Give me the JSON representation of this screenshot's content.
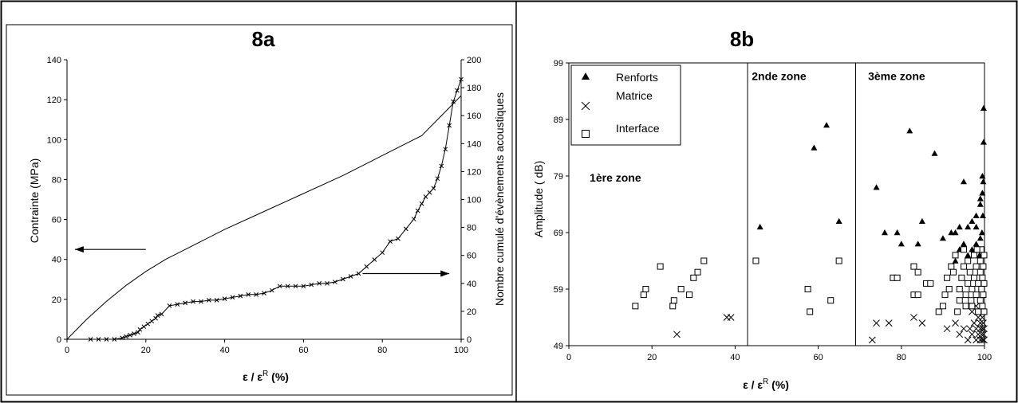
{
  "chart_data": [
    {
      "type": "line",
      "title": "8a",
      "xlabel": "ε / ε",
      "xlabel_sup": "R",
      "xlabel_unit": " (%)",
      "ylabel": "Contrainte (MPa)",
      "y2label": "Nombre cumulé d'évènements acoustiques",
      "xlim": [
        0,
        100
      ],
      "ylim": [
        0,
        140
      ],
      "y2lim": [
        0,
        200
      ],
      "x_ticks": [
        "0",
        "20",
        "40",
        "60",
        "80",
        "100"
      ],
      "y_ticks": [
        "0",
        "20",
        "40",
        "60",
        "80",
        "100",
        "120",
        "140"
      ],
      "y2_ticks": [
        "0",
        "20",
        "40",
        "60",
        "80",
        "100",
        "120",
        "140",
        "160",
        "180",
        "200"
      ],
      "grid": false,
      "series": [
        {
          "axis": "left",
          "marker": "none",
          "points": [
            [
              0,
              0
            ],
            [
              5,
              10
            ],
            [
              10,
              19
            ],
            [
              15,
              27
            ],
            [
              20,
              34
            ],
            [
              25,
              40
            ],
            [
              30,
              45
            ],
            [
              40,
              55
            ],
            [
              50,
              64
            ],
            [
              60,
              73
            ],
            [
              70,
              82
            ],
            [
              80,
              92
            ],
            [
              90,
              102
            ],
            [
              100,
              122
            ]
          ]
        },
        {
          "axis": "right",
          "marker": "cross",
          "points": [
            [
              6,
              0
            ],
            [
              8,
              0
            ],
            [
              10,
              0
            ],
            [
              12,
              0
            ],
            [
              14,
              1
            ],
            [
              15,
              2
            ],
            [
              16,
              3
            ],
            [
              17,
              4
            ],
            [
              18,
              5
            ],
            [
              18.5,
              7
            ],
            [
              19.5,
              9
            ],
            [
              20.5,
              11
            ],
            [
              21.5,
              13
            ],
            [
              22.5,
              15
            ],
            [
              23,
              17
            ],
            [
              24,
              18
            ],
            [
              26,
              24
            ],
            [
              28,
              25
            ],
            [
              30,
              26
            ],
            [
              32,
              27
            ],
            [
              34,
              27
            ],
            [
              36,
              28
            ],
            [
              38,
              28
            ],
            [
              40,
              29
            ],
            [
              42,
              30
            ],
            [
              44,
              31
            ],
            [
              46,
              32
            ],
            [
              48,
              32
            ],
            [
              50,
              33
            ],
            [
              52,
              35
            ],
            [
              54,
              38
            ],
            [
              56,
              38
            ],
            [
              58,
              38
            ],
            [
              60,
              38
            ],
            [
              62,
              39
            ],
            [
              64,
              40
            ],
            [
              66,
              40
            ],
            [
              68,
              41
            ],
            [
              70,
              43
            ],
            [
              72,
              45
            ],
            [
              74,
              47
            ],
            [
              76,
              52
            ],
            [
              78,
              57
            ],
            [
              80,
              62
            ],
            [
              82,
              70
            ],
            [
              84,
              72
            ],
            [
              86,
              79
            ],
            [
              88,
              86
            ],
            [
              89,
              92
            ],
            [
              90,
              97
            ],
            [
              91,
              102
            ],
            [
              92,
              105
            ],
            [
              93,
              108
            ],
            [
              94,
              115
            ],
            [
              95,
              124
            ],
            [
              96,
              136
            ],
            [
              97,
              153
            ],
            [
              98,
              170
            ],
            [
              99,
              178
            ],
            [
              100,
              186
            ]
          ]
        }
      ],
      "annotations": [
        {
          "type": "arrow",
          "direction": "left",
          "from": [
            20,
            45
          ],
          "to": [
            2,
            45
          ]
        },
        {
          "type": "arrow",
          "direction": "right",
          "from": [
            75,
            47
          ],
          "to": [
            97,
            47
          ]
        }
      ]
    },
    {
      "type": "scatter",
      "title": "8b",
      "xlabel": "ε / ε",
      "xlabel_sup": "R",
      "xlabel_unit": " (%)",
      "ylabel": "Amplitude ( dB)",
      "xlim": [
        0,
        100
      ],
      "ylim": [
        49,
        99
      ],
      "x_ticks": [
        "0",
        "20",
        "40",
        "60",
        "80",
        "100"
      ],
      "y_ticks": [
        "49",
        "59",
        "69",
        "79",
        "89",
        "99"
      ],
      "grid": false,
      "legend_position": "top-left",
      "zones": [
        {
          "label": "1ère zone",
          "x_label": 5,
          "y_label": 78
        },
        {
          "label": "2nde zone",
          "x_start": 43,
          "x_label": 44,
          "y_label": 96
        },
        {
          "label": "3ème zone",
          "x_start": 69,
          "x_label": 72,
          "y_label": 96
        }
      ],
      "series": [
        {
          "name": "Renforts",
          "marker": "triangle",
          "points": [
            [
              46,
              70
            ],
            [
              59,
              84
            ],
            [
              62,
              88
            ],
            [
              65,
              71
            ],
            [
              74,
              77
            ],
            [
              76,
              69
            ],
            [
              79,
              69
            ],
            [
              80,
              67
            ],
            [
              82,
              87
            ],
            [
              84,
              67
            ],
            [
              85,
              71
            ],
            [
              88,
              83
            ],
            [
              90,
              68
            ],
            [
              92,
              69
            ],
            [
              93,
              69
            ],
            [
              94,
              70
            ],
            [
              95,
              78
            ],
            [
              96,
              70
            ],
            [
              97,
              71
            ],
            [
              98,
              70
            ],
            [
              98,
              72
            ],
            [
              99,
              74
            ],
            [
              99,
              75
            ],
            [
              99.5,
              76
            ],
            [
              99.5,
              79
            ],
            [
              99.8,
              85
            ],
            [
              99.8,
              91
            ],
            [
              99,
              68
            ],
            [
              98,
              67
            ],
            [
              97,
              66
            ],
            [
              96,
              65
            ],
            [
              95,
              67
            ],
            [
              94,
              66
            ],
            [
              93,
              64
            ],
            [
              99.7,
              78
            ],
            [
              99.6,
              72
            ],
            [
              99.4,
              69
            ],
            [
              99.2,
              66
            ],
            [
              98.8,
              65
            ]
          ]
        },
        {
          "name": "Matrice",
          "marker": "cross",
          "points": [
            [
              26,
              51
            ],
            [
              38,
              54
            ],
            [
              39,
              54
            ],
            [
              73,
              50
            ],
            [
              74,
              53
            ],
            [
              77,
              53
            ],
            [
              83,
              54
            ],
            [
              85,
              53
            ],
            [
              91,
              52
            ],
            [
              93,
              53
            ],
            [
              94,
              51
            ],
            [
              95,
              52
            ],
            [
              96,
              50
            ],
            [
              96.5,
              52
            ],
            [
              97,
              51
            ],
            [
              97.5,
              53
            ],
            [
              98,
              50
            ],
            [
              98,
              52
            ],
            [
              98.5,
              51
            ],
            [
              98.5,
              54
            ],
            [
              99,
              50
            ],
            [
              99,
              52
            ],
            [
              99,
              53
            ],
            [
              99.3,
              51
            ],
            [
              99.5,
              50
            ],
            [
              99.5,
              52
            ],
            [
              99.7,
              53
            ],
            [
              99.8,
              51
            ],
            [
              99.9,
              50
            ],
            [
              99.9,
              52
            ],
            [
              97,
              55
            ],
            [
              98,
              56
            ],
            [
              99,
              55
            ],
            [
              99.5,
              54
            ]
          ]
        },
        {
          "name": "Interface",
          "marker": "square",
          "points": [
            [
              16,
              56
            ],
            [
              18,
              58
            ],
            [
              18.5,
              59
            ],
            [
              22,
              63
            ],
            [
              25,
              56
            ],
            [
              25.3,
              57
            ],
            [
              27,
              59
            ],
            [
              29,
              58
            ],
            [
              30,
              61
            ],
            [
              31,
              62
            ],
            [
              32.5,
              64
            ],
            [
              45,
              64
            ],
            [
              57.5,
              59
            ],
            [
              58,
              55
            ],
            [
              63,
              57
            ],
            [
              65,
              64
            ],
            [
              78,
              61
            ],
            [
              79,
              61
            ],
            [
              83,
              58
            ],
            [
              84,
              58
            ],
            [
              83,
              63
            ],
            [
              84,
              62
            ],
            [
              86,
              60
            ],
            [
              87,
              60
            ],
            [
              89,
              55
            ],
            [
              90,
              56
            ],
            [
              90.5,
              58
            ],
            [
              91,
              61
            ],
            [
              91.5,
              59
            ],
            [
              92,
              63
            ],
            [
              93,
              65
            ],
            [
              93.5,
              55
            ],
            [
              94,
              57
            ],
            [
              94.5,
              61
            ],
            [
              95,
              63
            ],
            [
              95.5,
              58
            ],
            [
              96,
              60
            ],
            [
              96,
              64
            ],
            [
              96.5,
              62
            ],
            [
              97,
              59
            ],
            [
              97,
              56
            ],
            [
              97.5,
              61
            ],
            [
              97.5,
              65
            ],
            [
              98,
              58
            ],
            [
              98,
              63
            ],
            [
              98.5,
              60
            ],
            [
              98.5,
              55
            ],
            [
              99,
              62
            ],
            [
              99,
              57
            ],
            [
              99,
              64
            ],
            [
              99.3,
              59
            ],
            [
              99.5,
              61
            ],
            [
              99.5,
              56
            ],
            [
              99.7,
              63
            ],
            [
              99.7,
              58
            ],
            [
              99.9,
              60
            ],
            [
              99.9,
              55
            ],
            [
              99.9,
              65
            ],
            [
              99.2,
              66
            ],
            [
              95,
              66
            ],
            [
              92.5,
              62
            ],
            [
              94,
              59
            ],
            [
              95.5,
              56
            ],
            [
              96.8,
              57
            ],
            [
              98.2,
              66
            ]
          ]
        }
      ]
    }
  ]
}
